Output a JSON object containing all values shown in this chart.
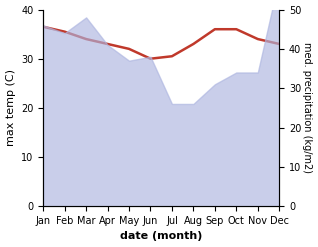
{
  "months": [
    "Jan",
    "Feb",
    "Mar",
    "Apr",
    "May",
    "Jun",
    "Jul",
    "Aug",
    "Sep",
    "Oct",
    "Nov",
    "Dec"
  ],
  "month_indices": [
    0,
    1,
    2,
    3,
    4,
    5,
    6,
    7,
    8,
    9,
    10,
    11
  ],
  "precipitation": [
    46,
    44,
    48,
    41,
    37,
    38,
    26,
    26,
    31,
    34,
    34,
    58
  ],
  "max_temp": [
    36.5,
    35.5,
    34,
    33,
    32,
    30,
    30.5,
    33,
    36,
    36,
    34,
    33
  ],
  "temp_ylim": [
    0,
    40
  ],
  "precip_ylim": [
    0,
    50
  ],
  "temp_yticks": [
    0,
    10,
    20,
    30,
    40
  ],
  "precip_yticks": [
    0,
    10,
    20,
    30,
    40,
    50
  ],
  "xlabel": "date (month)",
  "ylabel_left": "max temp (C)",
  "ylabel_right": "med. precipitation (kg/m2)",
  "fill_color": "#adb5e0",
  "fill_alpha": 0.65,
  "line_color": "#c0392b",
  "line_width": 1.8,
  "background_color": "#ffffff"
}
